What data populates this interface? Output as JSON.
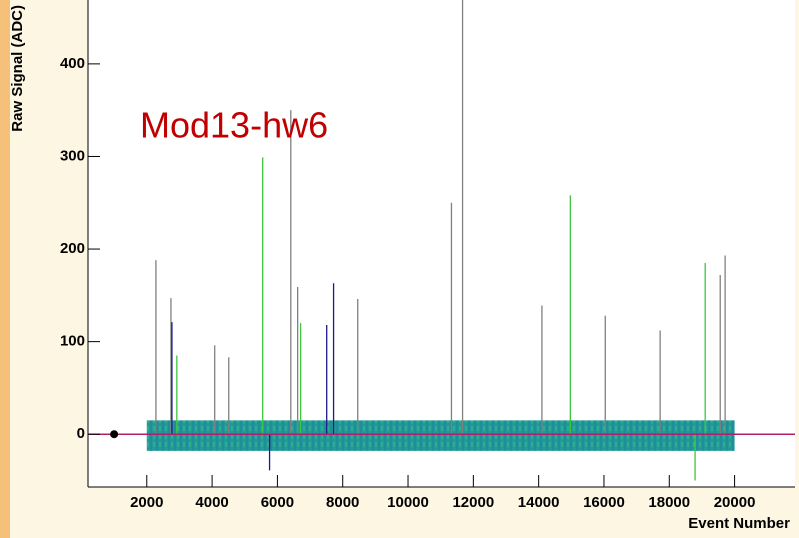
{
  "chart_data": {
    "type": "spikes",
    "title": "Mod13-hw6",
    "x_label": "Event Number",
    "y_label": "Raw Signal (ADC)",
    "xlim": [
      200,
      21850
    ],
    "ylim": [
      -57,
      469
    ],
    "xticks": [
      2000,
      4000,
      6000,
      8000,
      10000,
      12000,
      14000,
      16000,
      18000,
      20000
    ],
    "yticks": [
      0,
      100,
      200,
      300,
      400
    ],
    "baseline": {
      "value": 0,
      "color": "#b0206a"
    },
    "marker": {
      "x": 1000,
      "y": 0,
      "color": "#000000"
    },
    "noise_band": {
      "x": [
        2000,
        20000
      ],
      "upper": [
        15,
        15
      ],
      "lower": [
        -18,
        -18
      ],
      "color": "#1f9a9a"
    },
    "series": [
      {
        "color": "#808080",
        "x": [
          2280,
          2740,
          4080,
          4510,
          6410,
          6620,
          8460,
          11330,
          11670,
          14100,
          16040,
          17720,
          19560,
          19710
        ],
        "values": [
          188,
          147,
          96,
          83,
          350,
          159,
          146,
          250,
          469,
          139,
          128,
          112,
          172,
          193
        ]
      },
      {
        "color": "#3cc83c",
        "x": [
          2920,
          5550,
          6710,
          14970,
          18790,
          19100
        ],
        "values": [
          85,
          299,
          120,
          258,
          -50,
          185
        ]
      },
      {
        "color": "#1a1a8c",
        "x": [
          2770,
          5760,
          7510,
          7720
        ],
        "values": [
          121,
          -39,
          118,
          163
        ]
      }
    ]
  }
}
